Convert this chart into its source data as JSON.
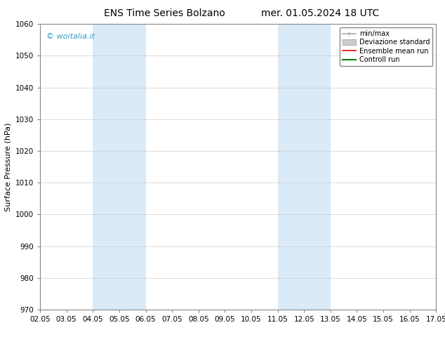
{
  "title_left": "ENS Time Series Bolzano",
  "title_right": "mer. 01.05.2024 18 UTC",
  "ylabel": "Surface Pressure (hPa)",
  "ylim": [
    970,
    1060
  ],
  "yticks": [
    970,
    980,
    990,
    1000,
    1010,
    1020,
    1030,
    1040,
    1050,
    1060
  ],
  "xtick_labels": [
    "02.05",
    "03.05",
    "04.05",
    "05.05",
    "06.05",
    "07.05",
    "08.05",
    "09.05",
    "10.05",
    "11.05",
    "12.05",
    "13.05",
    "14.05",
    "15.05",
    "16.05",
    "17.05"
  ],
  "xtick_positions": [
    0,
    1,
    2,
    3,
    4,
    5,
    6,
    7,
    8,
    9,
    10,
    11,
    12,
    13,
    14,
    15
  ],
  "shaded_bands": [
    {
      "x_start": 2,
      "x_end": 4
    },
    {
      "x_start": 9,
      "x_end": 11
    }
  ],
  "shaded_color": "#daeaf7",
  "watermark_text": "© woitalia.it",
  "watermark_color": "#3399cc",
  "legend_entries": [
    {
      "label": "min/max",
      "color": "#aaaaaa",
      "lw": 1.2,
      "ls": "-",
      "type": "minmax"
    },
    {
      "label": "Deviazione standard",
      "color": "#cccccc",
      "lw": 8,
      "ls": "-",
      "type": "band"
    },
    {
      "label": "Ensemble mean run",
      "color": "#ff0000",
      "lw": 1.2,
      "ls": "-",
      "type": "line"
    },
    {
      "label": "Controll run",
      "color": "#008000",
      "lw": 1.5,
      "ls": "-",
      "type": "line"
    }
  ],
  "background_color": "#ffffff",
  "grid_color": "#cccccc",
  "title_fontsize": 10,
  "tick_fontsize": 7.5,
  "ylabel_fontsize": 8,
  "watermark_fontsize": 8,
  "legend_fontsize": 7
}
